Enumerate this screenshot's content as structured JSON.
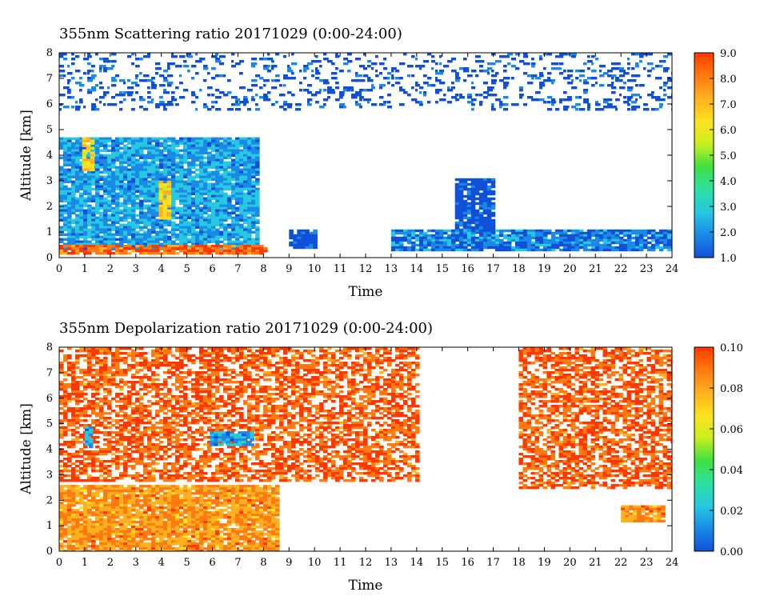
{
  "chart_data": [
    {
      "type": "heatmap",
      "title": "355nm Scattering ratio  20171029 (0:00-24:00)",
      "xlabel": "Time",
      "ylabel": "Altitude [km]",
      "xlim": [
        0,
        24
      ],
      "ylim": [
        0,
        8
      ],
      "xticks": [
        "0",
        "1",
        "2",
        "3",
        "4",
        "5",
        "6",
        "7",
        "8",
        "9",
        "10",
        "11",
        "12",
        "13",
        "14",
        "15",
        "16",
        "17",
        "18",
        "19",
        "20",
        "21",
        "22",
        "23",
        "24"
      ],
      "yticks": [
        "0",
        "1",
        "2",
        "3",
        "4",
        "5",
        "6",
        "7",
        "8"
      ],
      "colorbar": {
        "range": [
          1.0,
          9.0
        ],
        "ticks": [
          "1.0",
          "2.0",
          "3.0",
          "4.0",
          "5.0",
          "6.0",
          "7.0",
          "8.0",
          "9.0"
        ],
        "colors": [
          "#1050d8",
          "#1a8ae6",
          "#27c8e0",
          "#2ee0a0",
          "#40e040",
          "#c8f020",
          "#ffe020",
          "#ffb020",
          "#ff7a10",
          "#ff3800"
        ]
      },
      "features": [
        {
          "x": [
            0.0,
            7.8
          ],
          "y": [
            0.3,
            4.7
          ],
          "value": 2.5
        },
        {
          "x": [
            0.0,
            8.0
          ],
          "y": [
            0.2,
            0.5
          ],
          "value": 8.0
        },
        {
          "x": [
            0.9,
            1.3
          ],
          "y": [
            3.4,
            4.7
          ],
          "value": 6.5
        },
        {
          "x": [
            3.9,
            4.3
          ],
          "y": [
            1.5,
            3.0
          ],
          "value": 6.5
        },
        {
          "x": [
            9.0,
            10.0
          ],
          "y": [
            0.4,
            1.1
          ],
          "value": 1.2
        },
        {
          "x": [
            15.5,
            17.0
          ],
          "y": [
            1.0,
            3.1
          ],
          "value": 1.2
        },
        {
          "x": [
            13.0,
            24.0
          ],
          "y": [
            0.3,
            1.1
          ],
          "value": 2.0
        },
        {
          "x": [
            0.0,
            24.0
          ],
          "y": [
            5.8,
            8.0
          ],
          "value": 1.5
        }
      ]
    },
    {
      "type": "heatmap",
      "title": "355nm Depolarization ratio  20171029 (0:00-24:00)",
      "xlabel": "Time",
      "ylabel": "Altitude [km]",
      "xlim": [
        0,
        24
      ],
      "ylim": [
        0,
        8
      ],
      "xticks": [
        "0",
        "1",
        "2",
        "3",
        "4",
        "5",
        "6",
        "7",
        "8",
        "9",
        "10",
        "11",
        "12",
        "13",
        "14",
        "15",
        "16",
        "17",
        "18",
        "19",
        "20",
        "21",
        "22",
        "23",
        "24"
      ],
      "yticks": [
        "0",
        "1",
        "2",
        "3",
        "4",
        "5",
        "6",
        "7",
        "8"
      ],
      "colorbar": {
        "range": [
          0.0,
          0.1
        ],
        "ticks": [
          "0.00",
          "0.02",
          "0.04",
          "0.06",
          "0.08",
          "0.10"
        ],
        "colors": [
          "#1050d8",
          "#1a8ae6",
          "#27c8e0",
          "#2ee0a0",
          "#40e040",
          "#c8f020",
          "#ffe020",
          "#ffb020",
          "#ff7a10",
          "#ff3800"
        ]
      },
      "features": [
        {
          "x": [
            0.0,
            14.0
          ],
          "y": [
            2.8,
            8.0
          ],
          "value": 0.09
        },
        {
          "x": [
            0.0,
            8.6
          ],
          "y": [
            0.0,
            2.6
          ],
          "value": 0.08
        },
        {
          "x": [
            1.0,
            1.3
          ],
          "y": [
            4.1,
            4.9
          ],
          "value": 0.02
        },
        {
          "x": [
            5.9,
            7.6
          ],
          "y": [
            4.2,
            4.7
          ],
          "value": 0.02
        },
        {
          "x": [
            18.0,
            24.0
          ],
          "y": [
            2.5,
            8.0
          ],
          "value": 0.09
        },
        {
          "x": [
            22.0,
            23.7
          ],
          "y": [
            1.2,
            1.8
          ],
          "value": 0.08
        }
      ]
    }
  ]
}
